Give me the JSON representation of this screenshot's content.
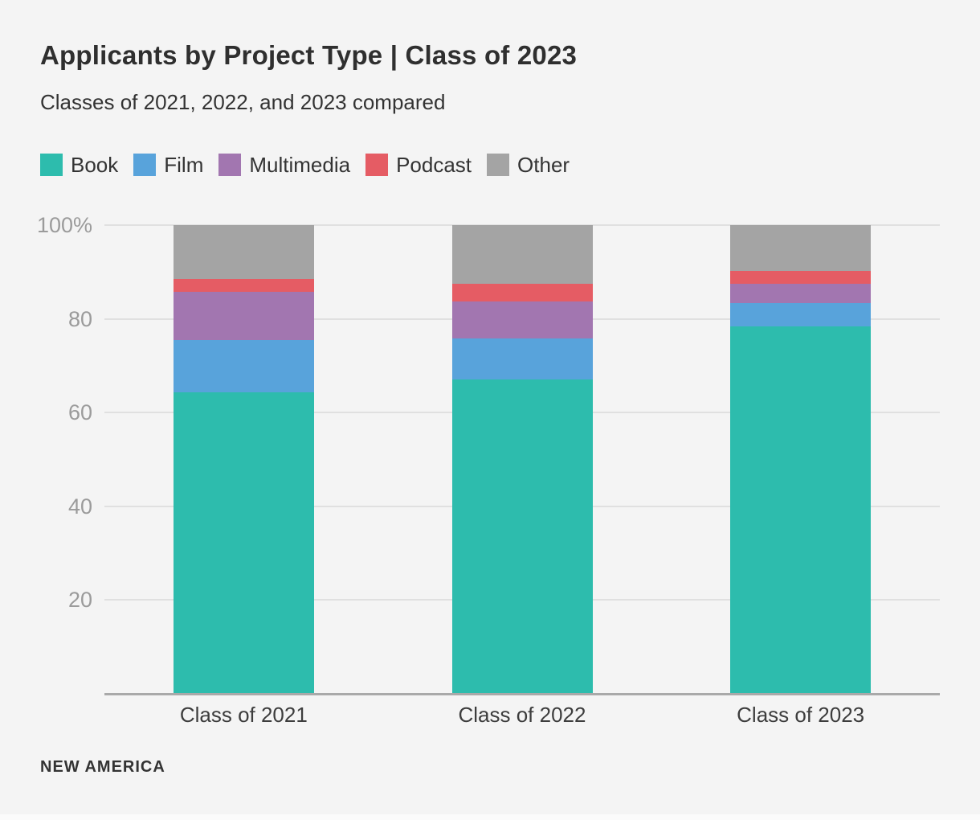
{
  "header": {
    "title": "Applicants by Project Type | Class of 2023",
    "subtitle": "Classes of 2021, 2022, and 2023 compared"
  },
  "footer": {
    "brand": "NEW AMERICA"
  },
  "theme": {
    "background": "#f4f4f4",
    "title_color": "#2f2f2f",
    "subtitle_color": "#333333",
    "gridline_color": "#e0e0e0",
    "axis_line_color": "#a9a9a9",
    "ytick_color": "#9b9b9b",
    "xtick_color": "#3d3d3d"
  },
  "chart_data": {
    "type": "bar",
    "stacked": true,
    "unit": "percent",
    "title": "Applicants by Project Type | Class of 2023",
    "subtitle": "Classes of 2021, 2022, and 2023 compared",
    "categories": [
      "Class of 2021",
      "Class of 2022",
      "Class of 2023"
    ],
    "series": [
      {
        "name": "Book",
        "color": "#2dbcad",
        "values": [
          64.4,
          67.0,
          78.4
        ]
      },
      {
        "name": "Film",
        "color": "#58a3db",
        "values": [
          11.1,
          8.8,
          5.0
        ]
      },
      {
        "name": "Multimedia",
        "color": "#a276b0",
        "values": [
          10.2,
          7.9,
          4.0
        ]
      },
      {
        "name": "Podcast",
        "color": "#e55c64",
        "values": [
          2.9,
          3.8,
          2.9
        ]
      },
      {
        "name": "Other",
        "color": "#a4a4a4",
        "values": [
          11.4,
          12.5,
          9.7
        ]
      }
    ],
    "ylim": [
      0,
      100
    ],
    "yticks": [
      {
        "value": 20,
        "label": "20"
      },
      {
        "value": 40,
        "label": "40"
      },
      {
        "value": 60,
        "label": "60"
      },
      {
        "value": 80,
        "label": "80"
      },
      {
        "value": 100,
        "label": "100%"
      }
    ],
    "grid": true,
    "legend_position": "top",
    "source": "NEW AMERICA"
  }
}
